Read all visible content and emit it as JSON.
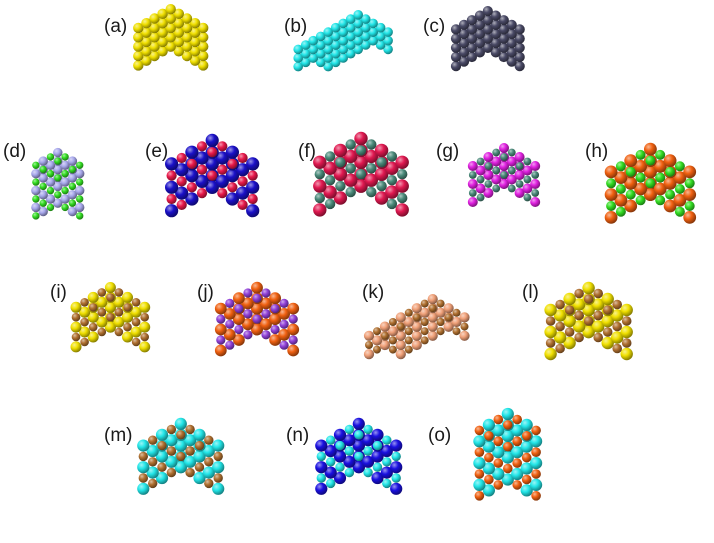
{
  "panels": [
    {
      "id": "a",
      "label": "(a)",
      "type": "cube",
      "colors": [
        "#f0e000"
      ]
    },
    {
      "id": "b",
      "label": "(b)",
      "type": "slab",
      "colors": [
        "#22e6e8"
      ]
    },
    {
      "id": "c",
      "label": "(c)",
      "type": "cube",
      "colors": [
        "#4a4a66"
      ]
    },
    {
      "id": "d",
      "label": "(d)",
      "type": "tower",
      "colors": [
        "#a8a8ec",
        "#33dd22"
      ]
    },
    {
      "id": "e",
      "label": "(e)",
      "type": "cube",
      "colors": [
        "#1a10c8",
        "#e8184a"
      ]
    },
    {
      "id": "f",
      "label": "(f)",
      "type": "cube",
      "colors": [
        "#e01850",
        "#4a8a7a"
      ]
    },
    {
      "id": "g",
      "label": "(g)",
      "type": "cube",
      "colors": [
        "#e020e0",
        "#4a8a7a"
      ]
    },
    {
      "id": "h",
      "label": "(h)",
      "type": "cube",
      "colors": [
        "#f06010",
        "#33dd22"
      ]
    },
    {
      "id": "i",
      "label": "(i)",
      "type": "cube",
      "colors": [
        "#f0e000",
        "#b07030"
      ]
    },
    {
      "id": "j",
      "label": "(j)",
      "type": "cube",
      "colors": [
        "#f06010",
        "#9040d8"
      ]
    },
    {
      "id": "k",
      "label": "(k)",
      "type": "slab",
      "colors": [
        "#f0a078",
        "#b07030"
      ]
    },
    {
      "id": "l",
      "label": "(l)",
      "type": "cube",
      "colors": [
        "#f0e000",
        "#b07030"
      ]
    },
    {
      "id": "m",
      "label": "(m)",
      "type": "cube",
      "colors": [
        "#22e6e8",
        "#b07030"
      ]
    },
    {
      "id": "n",
      "label": "(n)",
      "type": "cube",
      "colors": [
        "#1a10e0",
        "#22e6e8"
      ]
    },
    {
      "id": "o",
      "label": "(o)",
      "type": "tower",
      "colors": [
        "#22e6e8",
        "#f06010"
      ]
    }
  ]
}
